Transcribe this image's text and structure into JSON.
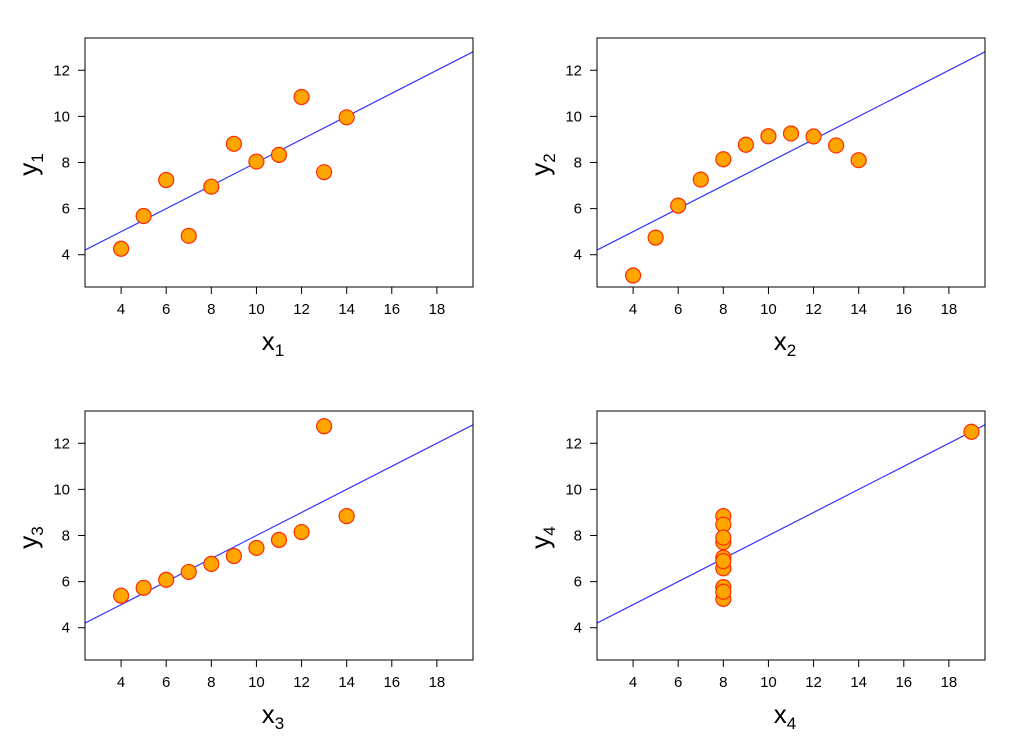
{
  "chart_data": [
    {
      "type": "scatter",
      "xlabel": "x",
      "xlabel_sub": "1",
      "ylabel": "y",
      "ylabel_sub": "1",
      "xlim": [
        2.4,
        19.6
      ],
      "ylim": [
        2.6,
        13.4
      ],
      "xticks": [
        4,
        6,
        8,
        10,
        12,
        14,
        16,
        18
      ],
      "yticks": [
        4,
        6,
        8,
        10,
        12
      ],
      "x": [
        10,
        8,
        13,
        9,
        11,
        14,
        6,
        4,
        12,
        7,
        5
      ],
      "y": [
        8.04,
        6.95,
        7.58,
        8.81,
        8.33,
        9.96,
        7.24,
        4.26,
        10.84,
        4.82,
        5.68
      ],
      "fit_line": {
        "intercept": 3.0,
        "slope": 0.5
      },
      "grid": false
    },
    {
      "type": "scatter",
      "xlabel": "x",
      "xlabel_sub": "2",
      "ylabel": "y",
      "ylabel_sub": "2",
      "xlim": [
        2.4,
        19.6
      ],
      "ylim": [
        2.6,
        13.4
      ],
      "xticks": [
        4,
        6,
        8,
        10,
        12,
        14,
        16,
        18
      ],
      "yticks": [
        4,
        6,
        8,
        10,
        12
      ],
      "x": [
        10,
        8,
        13,
        9,
        11,
        14,
        6,
        4,
        12,
        7,
        5
      ],
      "y": [
        9.14,
        8.14,
        8.74,
        8.77,
        9.26,
        8.1,
        6.13,
        3.1,
        9.13,
        7.26,
        4.74
      ],
      "fit_line": {
        "intercept": 3.0,
        "slope": 0.5
      },
      "grid": false
    },
    {
      "type": "scatter",
      "xlabel": "x",
      "xlabel_sub": "3",
      "ylabel": "y",
      "ylabel_sub": "3",
      "xlim": [
        2.4,
        19.6
      ],
      "ylim": [
        2.6,
        13.4
      ],
      "xticks": [
        4,
        6,
        8,
        10,
        12,
        14,
        16,
        18
      ],
      "yticks": [
        4,
        6,
        8,
        10,
        12
      ],
      "x": [
        10,
        8,
        13,
        9,
        11,
        14,
        6,
        4,
        12,
        7,
        5
      ],
      "y": [
        7.46,
        6.77,
        12.74,
        7.11,
        7.81,
        8.84,
        6.08,
        5.39,
        8.15,
        6.42,
        5.73
      ],
      "fit_line": {
        "intercept": 3.0,
        "slope": 0.5
      },
      "grid": false
    },
    {
      "type": "scatter",
      "xlabel": "x",
      "xlabel_sub": "4",
      "ylabel": "y",
      "ylabel_sub": "4",
      "xlim": [
        2.4,
        19.6
      ],
      "ylim": [
        2.6,
        13.4
      ],
      "xticks": [
        4,
        6,
        8,
        10,
        12,
        14,
        16,
        18
      ],
      "yticks": [
        4,
        6,
        8,
        10,
        12
      ],
      "x": [
        8,
        8,
        8,
        8,
        8,
        8,
        8,
        19,
        8,
        8,
        8
      ],
      "y": [
        6.58,
        5.76,
        7.71,
        8.84,
        8.47,
        7.04,
        5.25,
        12.5,
        5.56,
        7.91,
        6.89
      ],
      "fit_line": {
        "intercept": 3.0,
        "slope": 0.5
      },
      "grid": false
    }
  ],
  "colors": {
    "point_fill": "#FFA500",
    "point_stroke": "#FF2A00",
    "line": "#3333FF",
    "axes": "#000000"
  }
}
